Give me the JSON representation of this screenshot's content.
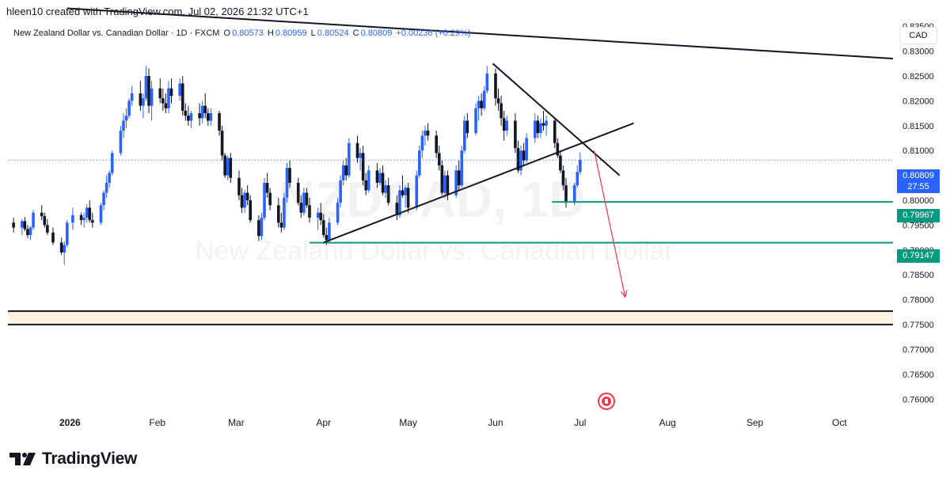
{
  "header": {
    "created_by": "hleen10 created with TradingView.com, Jul 02, 2026 21:32 UTC+1"
  },
  "legend": {
    "symbol_title": "New Zealand Dollar vs. Canadian Dollar · 1D · FXCM",
    "open_label": "O",
    "open_value": "0.80573",
    "high_label": "H",
    "high_value": "0.80959",
    "low_label": "L",
    "low_value": "0.80524",
    "close_label": "C",
    "close_value": "0.80809",
    "change": "+0.00236 (+0.29%)"
  },
  "currency_button": "CAD",
  "watermark": {
    "symbol": "NZDCAD, 1D",
    "description": "New Zealand Dollar vs. Canadian Dollar"
  },
  "price_tags": {
    "current_price": "0.80809",
    "countdown": "27:55",
    "level_1": "0.79967",
    "level_2": "0.79147"
  },
  "footer": {
    "brand": "TradingView"
  },
  "colors": {
    "up_candle": "#2962ff",
    "down_candle": "#131722",
    "support_line": "#089981",
    "current_price": "#2962ff",
    "projection_arrow": "#f23645",
    "zone_fill": "#fff3e0",
    "trendline": "#131722"
  },
  "chart_data": {
    "type": "candlestick",
    "y_axis": {
      "ylim": [
        0.7575,
        0.8355
      ],
      "ticks": [
        "0.83000",
        "0.82500",
        "0.82000",
        "0.81500",
        "0.81000",
        "0.80500",
        "0.80000",
        "0.79500",
        "0.79000",
        "0.78500",
        "0.78000",
        "0.77500",
        "0.77000",
        "0.76500",
        "0.76000"
      ],
      "partial_top_tick": "0.83500"
    },
    "x_axis": {
      "labels": [
        {
          "text": "2026",
          "date": "2026-01-01",
          "bold": true
        },
        {
          "text": "Feb",
          "date": "2026-02-01",
          "bold": false
        },
        {
          "text": "Mar",
          "date": "2026-03-01",
          "bold": false
        },
        {
          "text": "Apr",
          "date": "2026-04-01",
          "bold": false
        },
        {
          "text": "May",
          "date": "2026-05-01",
          "bold": false
        },
        {
          "text": "Jun",
          "date": "2026-06-01",
          "bold": false
        },
        {
          "text": "Jul",
          "date": "2026-07-01",
          "bold": false
        },
        {
          "text": "Aug",
          "date": "2026-08-01",
          "bold": false
        },
        {
          "text": "Sep",
          "date": "2026-09-01",
          "bold": false
        },
        {
          "text": "Oct",
          "date": "2026-10-01",
          "bold": false
        }
      ],
      "range": [
        "2025-12-10",
        "2026-10-20"
      ]
    },
    "candles": [
      [
        "2025-12-12",
        0.7955,
        0.7965,
        0.7935,
        0.7945
      ],
      [
        "2025-12-15",
        0.7945,
        0.7962,
        0.793,
        0.7958
      ],
      [
        "2025-12-16",
        0.7958,
        0.7966,
        0.7938,
        0.7942
      ],
      [
        "2025-12-17",
        0.7942,
        0.795,
        0.7924,
        0.793
      ],
      [
        "2025-12-18",
        0.793,
        0.7948,
        0.792,
        0.7945
      ],
      [
        "2025-12-19",
        0.7945,
        0.798,
        0.794,
        0.7975
      ],
      [
        "2025-12-22",
        0.7975,
        0.799,
        0.796,
        0.7968
      ],
      [
        "2025-12-23",
        0.7968,
        0.7975,
        0.7945,
        0.795
      ],
      [
        "2025-12-24",
        0.795,
        0.7962,
        0.793,
        0.7935
      ],
      [
        "2025-12-26",
        0.7935,
        0.7945,
        0.791,
        0.7915
      ],
      [
        "2025-12-29",
        0.7915,
        0.7925,
        0.789,
        0.7895
      ],
      [
        "2025-12-30",
        0.7895,
        0.7918,
        0.787,
        0.791
      ],
      [
        "2025-12-31",
        0.791,
        0.796,
        0.7905,
        0.7955
      ],
      [
        "2026-01-02",
        0.7955,
        0.7985,
        0.794,
        0.797
      ],
      [
        "2026-01-05",
        0.797,
        0.7975,
        0.795,
        0.796
      ],
      [
        "2026-01-06",
        0.796,
        0.7975,
        0.7945,
        0.7965
      ],
      [
        "2026-01-07",
        0.7965,
        0.7992,
        0.7955,
        0.7985
      ],
      [
        "2026-01-08",
        0.7985,
        0.8,
        0.7955,
        0.796
      ],
      [
        "2026-01-09",
        0.796,
        0.7975,
        0.7945,
        0.7955
      ],
      [
        "2026-01-12",
        0.7955,
        0.7995,
        0.795,
        0.799
      ],
      [
        "2026-01-13",
        0.799,
        0.802,
        0.798,
        0.8015
      ],
      [
        "2026-01-14",
        0.8015,
        0.805,
        0.8005,
        0.8035
      ],
      [
        "2026-01-15",
        0.8035,
        0.806,
        0.8025,
        0.8055
      ],
      [
        "2026-01-16",
        0.8055,
        0.81,
        0.805,
        0.8095
      ],
      [
        "2026-01-19",
        0.8095,
        0.815,
        0.809,
        0.814
      ],
      [
        "2026-01-20",
        0.814,
        0.8175,
        0.8125,
        0.816
      ],
      [
        "2026-01-21",
        0.816,
        0.8185,
        0.8145,
        0.817
      ],
      [
        "2026-01-22",
        0.817,
        0.8205,
        0.8165,
        0.82
      ],
      [
        "2026-01-23",
        0.82,
        0.823,
        0.819,
        0.8215
      ],
      [
        "2026-01-26",
        0.8215,
        0.824,
        0.818,
        0.819
      ],
      [
        "2026-01-27",
        0.819,
        0.8215,
        0.8165,
        0.8205
      ],
      [
        "2026-01-28",
        0.8205,
        0.827,
        0.82,
        0.825
      ],
      [
        "2026-01-29",
        0.825,
        0.8265,
        0.8175,
        0.819
      ],
      [
        "2026-01-30",
        0.819,
        0.824,
        0.816,
        0.8225
      ],
      [
        "2026-02-02",
        0.8225,
        0.8245,
        0.8195,
        0.8205
      ],
      [
        "2026-02-03",
        0.8205,
        0.8225,
        0.818,
        0.8195
      ],
      [
        "2026-02-04",
        0.8195,
        0.8215,
        0.8175,
        0.8185
      ],
      [
        "2026-02-05",
        0.8185,
        0.824,
        0.8175,
        0.8225
      ],
      [
        "2026-02-06",
        0.8225,
        0.8245,
        0.8195,
        0.821
      ],
      [
        "2026-02-09",
        0.821,
        0.8245,
        0.82,
        0.8235
      ],
      [
        "2026-02-10",
        0.8235,
        0.825,
        0.817,
        0.818
      ],
      [
        "2026-02-11",
        0.818,
        0.8195,
        0.816,
        0.817
      ],
      [
        "2026-02-12",
        0.817,
        0.819,
        0.815,
        0.816
      ],
      [
        "2026-02-13",
        0.816,
        0.818,
        0.8145,
        0.8175
      ],
      [
        "2026-02-16",
        0.8175,
        0.8195,
        0.815,
        0.8165
      ],
      [
        "2026-02-17",
        0.8165,
        0.82,
        0.8155,
        0.819
      ],
      [
        "2026-02-18",
        0.819,
        0.8215,
        0.8165,
        0.8175
      ],
      [
        "2026-02-19",
        0.8175,
        0.8185,
        0.815,
        0.816
      ],
      [
        "2026-02-20",
        0.816,
        0.8185,
        0.815,
        0.8175
      ],
      [
        "2026-02-23",
        0.8175,
        0.818,
        0.813,
        0.814
      ],
      [
        "2026-02-24",
        0.814,
        0.815,
        0.808,
        0.809
      ],
      [
        "2026-02-25",
        0.809,
        0.8095,
        0.8045,
        0.805
      ],
      [
        "2026-02-26",
        0.805,
        0.809,
        0.804,
        0.8085
      ],
      [
        "2026-02-27",
        0.8085,
        0.8095,
        0.8035,
        0.8045
      ],
      [
        "2026-03-02",
        0.8045,
        0.806,
        0.8,
        0.801
      ],
      [
        "2026-03-03",
        0.801,
        0.8025,
        0.7975,
        0.7985
      ],
      [
        "2026-03-04",
        0.7985,
        0.802,
        0.7975,
        0.8015
      ],
      [
        "2026-03-05",
        0.8015,
        0.803,
        0.799,
        0.8
      ],
      [
        "2026-03-06",
        0.8,
        0.801,
        0.7955,
        0.796
      ],
      [
        "2026-03-09",
        0.796,
        0.797,
        0.7918,
        0.7928
      ],
      [
        "2026-03-10",
        0.7928,
        0.7975,
        0.792,
        0.7965
      ],
      [
        "2026-03-11",
        0.7965,
        0.8045,
        0.796,
        0.8035
      ],
      [
        "2026-03-12",
        0.8035,
        0.8055,
        0.8005,
        0.8015
      ],
      [
        "2026-03-13",
        0.8015,
        0.8025,
        0.798,
        0.799
      ],
      [
        "2026-03-16",
        0.799,
        0.8005,
        0.7945,
        0.7955
      ],
      [
        "2026-03-17",
        0.7955,
        0.7975,
        0.7935,
        0.7945
      ],
      [
        "2026-03-18",
        0.7945,
        0.8015,
        0.794,
        0.8005
      ],
      [
        "2026-03-19",
        0.8005,
        0.8075,
        0.7995,
        0.8065
      ],
      [
        "2026-03-20",
        0.8065,
        0.808,
        0.8025,
        0.8035
      ],
      [
        "2026-03-23",
        0.8035,
        0.8045,
        0.799,
        0.7995
      ],
      [
        "2026-03-24",
        0.7995,
        0.801,
        0.7965,
        0.7975
      ],
      [
        "2026-03-25",
        0.7975,
        0.8025,
        0.797,
        0.8015
      ],
      [
        "2026-03-26",
        0.8015,
        0.8025,
        0.7985,
        0.799
      ],
      [
        "2026-03-27",
        0.799,
        0.8005,
        0.7955,
        0.7965
      ],
      [
        "2026-03-30",
        0.7965,
        0.7985,
        0.794,
        0.7975
      ],
      [
        "2026-03-31",
        0.7975,
        0.7995,
        0.795,
        0.796
      ],
      [
        "2026-04-01",
        0.796,
        0.7972,
        0.7925,
        0.793
      ],
      [
        "2026-04-02",
        0.793,
        0.7945,
        0.791,
        0.792
      ],
      [
        "2026-04-03",
        0.792,
        0.7965,
        0.7915,
        0.7955
      ],
      [
        "2026-04-06",
        0.7955,
        0.8005,
        0.795,
        0.7995
      ],
      [
        "2026-04-07",
        0.7995,
        0.805,
        0.7985,
        0.804
      ],
      [
        "2026-04-08",
        0.804,
        0.808,
        0.803,
        0.807
      ],
      [
        "2026-04-09",
        0.807,
        0.8085,
        0.804,
        0.805
      ],
      [
        "2026-04-10",
        0.805,
        0.8125,
        0.8045,
        0.8115
      ],
      [
        "2026-04-13",
        0.8115,
        0.813,
        0.8075,
        0.8085
      ],
      [
        "2026-04-14",
        0.8085,
        0.8105,
        0.806,
        0.8095
      ],
      [
        "2026-04-15",
        0.8095,
        0.811,
        0.803,
        0.804
      ],
      [
        "2026-04-16",
        0.804,
        0.8055,
        0.801,
        0.802
      ],
      [
        "2026-04-17",
        0.802,
        0.807,
        0.8015,
        0.806
      ],
      [
        "2026-04-20",
        0.806,
        0.8075,
        0.8025,
        0.8035
      ],
      [
        "2026-04-21",
        0.8035,
        0.8065,
        0.803,
        0.8055
      ],
      [
        "2026-04-22",
        0.8055,
        0.807,
        0.801,
        0.8015
      ],
      [
        "2026-04-23",
        0.8015,
        0.804,
        0.8005,
        0.803
      ],
      [
        "2026-04-24",
        0.803,
        0.8045,
        0.799,
        0.7995
      ],
      [
        "2026-04-27",
        0.7995,
        0.801,
        0.796,
        0.797
      ],
      [
        "2026-04-28",
        0.797,
        0.803,
        0.7965,
        0.802
      ],
      [
        "2026-04-29",
        0.802,
        0.805,
        0.8005,
        0.801
      ],
      [
        "2026-04-30",
        0.801,
        0.803,
        0.7985,
        0.8025
      ],
      [
        "2026-05-01",
        0.8025,
        0.8035,
        0.7975,
        0.7985
      ],
      [
        "2026-05-04",
        0.7985,
        0.806,
        0.798,
        0.805
      ],
      [
        "2026-05-05",
        0.805,
        0.811,
        0.8045,
        0.81
      ],
      [
        "2026-05-06",
        0.81,
        0.814,
        0.8085,
        0.813
      ],
      [
        "2026-05-07",
        0.813,
        0.815,
        0.811,
        0.814
      ],
      [
        "2026-05-08",
        0.814,
        0.8155,
        0.812,
        0.813
      ],
      [
        "2026-05-11",
        0.813,
        0.814,
        0.8085,
        0.8095
      ],
      [
        "2026-05-12",
        0.8095,
        0.811,
        0.806,
        0.807
      ],
      [
        "2026-05-13",
        0.807,
        0.808,
        0.801,
        0.8015
      ],
      [
        "2026-05-14",
        0.8015,
        0.806,
        0.8005,
        0.805
      ],
      [
        "2026-05-15",
        0.805,
        0.806,
        0.8,
        0.801
      ],
      [
        "2026-05-18",
        0.801,
        0.807,
        0.8005,
        0.806
      ],
      [
        "2026-05-19",
        0.806,
        0.808,
        0.802,
        0.803
      ],
      [
        "2026-05-20",
        0.803,
        0.811,
        0.8025,
        0.81
      ],
      [
        "2026-05-21",
        0.81,
        0.817,
        0.8095,
        0.816
      ],
      [
        "2026-05-22",
        0.816,
        0.8175,
        0.8125,
        0.8135
      ],
      [
        "2026-05-25",
        0.8135,
        0.8195,
        0.813,
        0.8185
      ],
      [
        "2026-05-26",
        0.8185,
        0.821,
        0.816,
        0.82
      ],
      [
        "2026-05-27",
        0.82,
        0.8215,
        0.817,
        0.8185
      ],
      [
        "2026-05-28",
        0.8185,
        0.823,
        0.818,
        0.822
      ],
      [
        "2026-05-29",
        0.822,
        0.827,
        0.8215,
        0.8255
      ],
      [
        "2026-06-01",
        0.8255,
        0.8265,
        0.819,
        0.8205
      ],
      [
        "2026-06-02",
        0.8205,
        0.8225,
        0.818,
        0.8195
      ],
      [
        "2026-06-03",
        0.8195,
        0.821,
        0.815,
        0.8165
      ],
      [
        "2026-06-04",
        0.8165,
        0.818,
        0.812,
        0.814
      ],
      [
        "2026-06-05",
        0.814,
        0.817,
        0.813,
        0.816
      ],
      [
        "2026-06-08",
        0.816,
        0.8175,
        0.8095,
        0.8105
      ],
      [
        "2026-06-09",
        0.8105,
        0.812,
        0.8055,
        0.806
      ],
      [
        "2026-06-10",
        0.806,
        0.811,
        0.805,
        0.81
      ],
      [
        "2026-06-11",
        0.81,
        0.8115,
        0.807,
        0.808
      ],
      [
        "2026-06-12",
        0.808,
        0.8135,
        0.8075,
        0.8125
      ],
      [
        "2026-06-15",
        0.8125,
        0.8175,
        0.8115,
        0.816
      ],
      [
        "2026-06-16",
        0.816,
        0.817,
        0.8125,
        0.8135
      ],
      [
        "2026-06-17",
        0.8135,
        0.8165,
        0.8125,
        0.8155
      ],
      [
        "2026-06-18",
        0.8155,
        0.818,
        0.814,
        0.815
      ],
      [
        "2026-06-19",
        0.815,
        0.817,
        0.813,
        0.816
      ],
      [
        "2026-06-22",
        0.816,
        0.8165,
        0.8105,
        0.8115
      ],
      [
        "2026-06-23",
        0.8115,
        0.8125,
        0.8085,
        0.809
      ],
      [
        "2026-06-24",
        0.809,
        0.81,
        0.8055,
        0.806
      ],
      [
        "2026-06-25",
        0.806,
        0.807,
        0.802,
        0.803
      ],
      [
        "2026-06-26",
        0.803,
        0.8045,
        0.7985,
        0.7995
      ],
      [
        "2026-06-29",
        0.7995,
        0.8035,
        0.799,
        0.803
      ],
      [
        "2026-06-30",
        0.803,
        0.807,
        0.8025,
        0.8057
      ],
      [
        "2026-07-01",
        0.8057,
        0.8096,
        0.8052,
        0.8081
      ]
    ],
    "current_price": 0.80809,
    "horizontal_levels": [
      0.79967,
      0.79147
    ],
    "level_line_start": [
      "2026-06-21",
      "2026-03-27"
    ],
    "zone": [
      0.775,
      0.7777
    ],
    "trendlines": [
      {
        "name": "long-resistance",
        "from": [
          "2025-12-31",
          0.8386
        ],
        "to": [
          "2026-10-20",
          0.8285
        ]
      },
      {
        "name": "rising-support",
        "from": [
          "2026-04-01",
          0.7915
        ],
        "to": [
          "2026-07-20",
          0.8155
        ]
      },
      {
        "name": "falling-resistance",
        "from": [
          "2026-05-31",
          0.8275
        ],
        "to": [
          "2026-07-15",
          0.805
        ]
      }
    ],
    "projection_arrow": {
      "from": [
        "2026-07-06",
        0.81
      ],
      "to": [
        "2026-07-17",
        0.7805
      ]
    },
    "event_marker_date": "2026-07-06"
  }
}
